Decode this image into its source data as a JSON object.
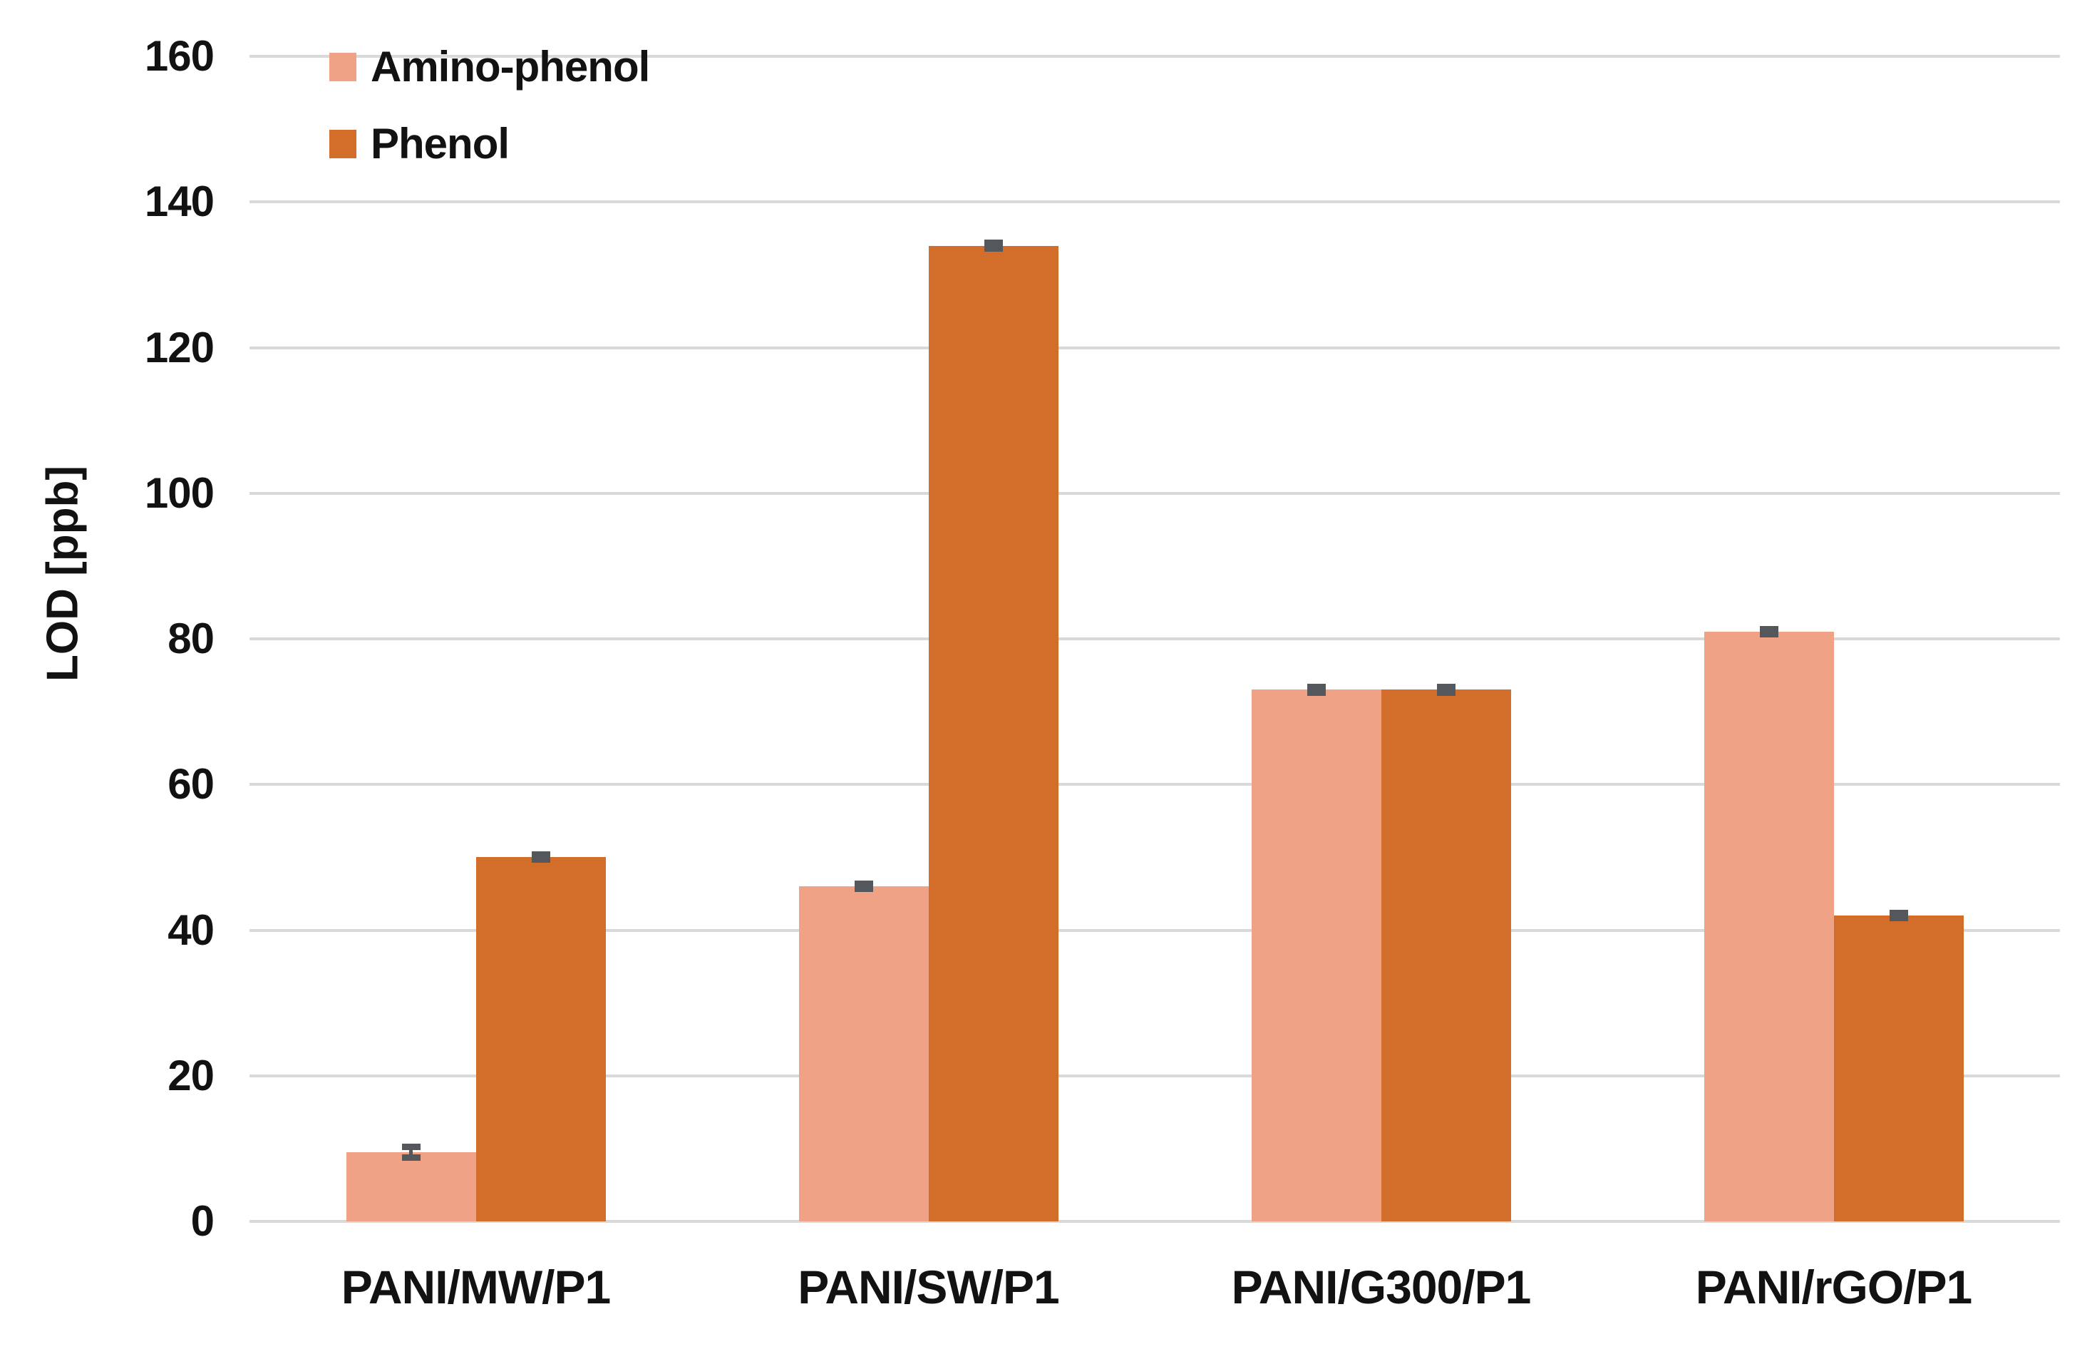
{
  "chart_data": {
    "type": "bar",
    "title": "",
    "ylabel": "LOD [ppb]",
    "xlabel": "",
    "ylim": [
      0,
      160
    ],
    "ytick_step": 20,
    "yticks": [
      0,
      20,
      40,
      60,
      80,
      100,
      120,
      140,
      160
    ],
    "grid": true,
    "legend_position": "top-left-inside",
    "categories": [
      "PANI/MW/P1",
      "PANI/SW/P1",
      "PANI/G300/P1",
      "PANI/rGO/P1"
    ],
    "series": [
      {
        "name": "Amino-phenol",
        "color": "#F0A287",
        "values": [
          9.5,
          46,
          73,
          81
        ],
        "errors": [
          0.7,
          0.35,
          0.35,
          0.35
        ]
      },
      {
        "name": "Phenol",
        "color": "#D26E2A",
        "values": [
          50,
          134,
          73,
          42
        ],
        "errors": [
          0.35,
          0.35,
          0.35,
          0.35
        ]
      }
    ],
    "error_bar_color": "#54575B",
    "gridline_color": "#D9D9D9",
    "text_color": "#121212",
    "background_color": "#FFFFFF"
  }
}
